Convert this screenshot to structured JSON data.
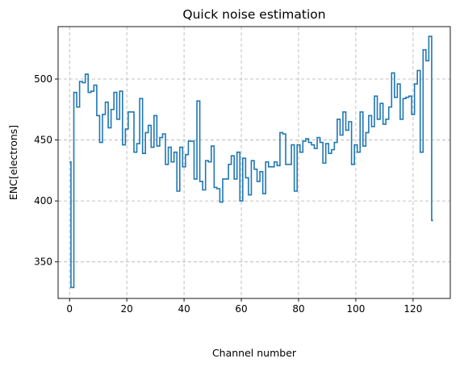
{
  "chart_data": {
    "type": "line",
    "drawstyle": "steps-mid",
    "title": "Quick noise estimation",
    "xlabel": "Channel number",
    "ylabel": "ENC[electrons]",
    "xlim": [
      -4,
      133
    ],
    "ylim": [
      320,
      543
    ],
    "xticks": [
      0,
      20,
      40,
      60,
      80,
      100,
      120
    ],
    "yticks": [
      350,
      400,
      450,
      500
    ],
    "grid": true,
    "series": [
      {
        "color": "#1f77b4",
        "x": [
          0,
          1,
          2,
          3,
          4,
          5,
          6,
          7,
          8,
          9,
          10,
          11,
          12,
          13,
          14,
          15,
          16,
          17,
          18,
          19,
          20,
          21,
          22,
          23,
          24,
          25,
          26,
          27,
          28,
          29,
          30,
          31,
          32,
          33,
          34,
          35,
          36,
          37,
          38,
          39,
          40,
          41,
          42,
          43,
          44,
          45,
          46,
          47,
          48,
          49,
          50,
          51,
          52,
          53,
          54,
          55,
          56,
          57,
          58,
          59,
          60,
          61,
          62,
          63,
          64,
          65,
          66,
          67,
          68,
          69,
          70,
          71,
          72,
          73,
          74,
          75,
          76,
          77,
          78,
          79,
          80,
          81,
          82,
          83,
          84,
          85,
          86,
          87,
          88,
          89,
          90,
          91,
          92,
          93,
          94,
          95,
          96,
          97,
          98,
          99,
          100,
          101,
          102,
          103,
          104,
          105,
          106,
          107,
          108,
          109,
          110,
          111,
          112,
          113,
          114,
          115,
          116,
          117,
          118,
          119,
          120,
          121,
          122,
          123,
          124,
          125,
          126,
          127
        ],
        "y": [
          432,
          329,
          489,
          477,
          498,
          497,
          504,
          489,
          490,
          495,
          470,
          448,
          471,
          481,
          460,
          475,
          489,
          467,
          490,
          446,
          459,
          473,
          473,
          440,
          447,
          484,
          439,
          456,
          462,
          444,
          470,
          445,
          452,
          455,
          430,
          444,
          432,
          440,
          408,
          444,
          428,
          438,
          449,
          449,
          418,
          482,
          416,
          409,
          433,
          432,
          445,
          411,
          410,
          399,
          418,
          418,
          430,
          437,
          418,
          440,
          400,
          435,
          419,
          405,
          433,
          426,
          416,
          424,
          406,
          432,
          428,
          428,
          432,
          429,
          456,
          455,
          430,
          430,
          446,
          408,
          446,
          440,
          449,
          451,
          448,
          446,
          443,
          452,
          448,
          431,
          447,
          439,
          442,
          448,
          467,
          454,
          473,
          458,
          465,
          430,
          446,
          440,
          473,
          445,
          456,
          470,
          461,
          486,
          467,
          480,
          463,
          467,
          477,
          505,
          485,
          496,
          467,
          484,
          485,
          486,
          471,
          496,
          507,
          440,
          524,
          515,
          535,
          384
        ]
      }
    ]
  }
}
